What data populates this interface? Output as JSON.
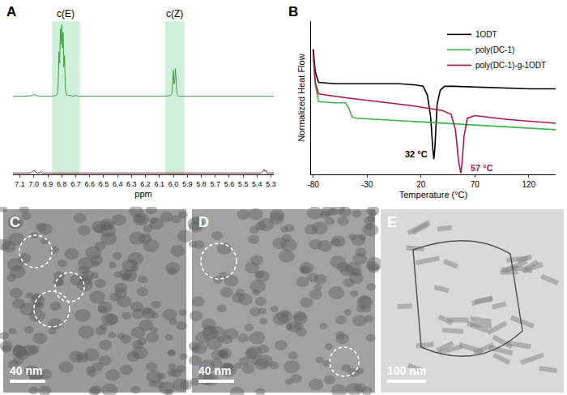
{
  "chart_data": [
    {
      "type": "line",
      "panel_label": "A",
      "x_label": "ppm",
      "xlim": [
        7.15,
        5.28
      ],
      "xticks": [
        {
          "value": 7.1,
          "label": "7.1"
        },
        {
          "value": 7,
          "label": "7.0"
        },
        6.9,
        6.8,
        6.7,
        6.6,
        6.5,
        6.4,
        6.3,
        6.2,
        6.1,
        {
          "value": 6,
          "label": "6.0"
        },
        5.9,
        5.8,
        5.7,
        5.6,
        5.5,
        5.4,
        5.3
      ],
      "ylim": [
        0,
        100
      ],
      "yticks": [],
      "y2lim": [
        0,
        100
      ],
      "y2ticks": [],
      "tick_labels": "x",
      "regions": [
        {
          "x": [
            6.87,
            6.67
          ],
          "label": "c(E)"
        },
        {
          "x": [
            6.06,
            5.92
          ],
          "label": "c(Z)"
        }
      ],
      "series": [
        {
          "color": "#3f9f3f",
          "axis": "y2",
          "x": [
            7.15,
            7.05,
            7.01,
            7.0,
            6.99,
            6.95,
            6.9,
            6.87,
            6.84,
            6.83,
            6.825,
            6.82,
            6.815,
            6.81,
            6.805,
            6.8,
            6.795,
            6.79,
            6.785,
            6.78,
            6.775,
            6.77,
            6.76,
            6.74,
            6.72,
            6.7,
            6.68,
            6.6,
            6.4,
            6.2,
            6.06,
            6.02,
            6.01,
            6.005,
            6.0,
            5.995,
            5.99,
            5.985,
            5.98,
            5.975,
            5.97,
            5.96,
            5.93,
            5.8,
            5.6,
            5.4,
            5.28
          ],
          "values": [
            2,
            2,
            3,
            5,
            3,
            2,
            2,
            2,
            3,
            5,
            20,
            60,
            45,
            90,
            70,
            95,
            65,
            85,
            40,
            55,
            15,
            6,
            3,
            3,
            2,
            3,
            2,
            2,
            2,
            2,
            2,
            3,
            6,
            20,
            36,
            18,
            22,
            38,
            14,
            6,
            3,
            2,
            2,
            2,
            2,
            2,
            2
          ]
        },
        {
          "color": "#8b1a2b",
          "axis": "y",
          "x": [
            7.15,
            7.02,
            7.0,
            6.98,
            6.96,
            6.95,
            6.94,
            6.8,
            6.6,
            6.4,
            6.2,
            6.0,
            5.8,
            5.6,
            5.4,
            5.37,
            5.36,
            5.35,
            5.345,
            5.34,
            5.33,
            5.28
          ],
          "values": [
            2,
            2,
            6,
            2,
            2,
            4,
            2,
            2,
            2,
            2,
            2,
            2,
            2,
            2,
            2,
            2,
            4,
            7,
            5,
            6,
            2,
            2
          ]
        }
      ]
    },
    {
      "type": "line",
      "panel_label": "B",
      "x_label": "Temperature (°C)",
      "y_label": "Normalized Heat Flow",
      "xlim": [
        -82,
        145
      ],
      "xticks": [
        -80,
        -30,
        20,
        70,
        120
      ],
      "ylim": [
        0,
        120
      ],
      "yticks": [],
      "tick_labels": "x",
      "legend": "top right",
      "series": [
        {
          "name": "1ODT",
          "color": "#000000",
          "x": [
            -80,
            -78,
            -75,
            -60,
            -30,
            0,
            15,
            22,
            26,
            29,
            31,
            32,
            33,
            35,
            38,
            42,
            50,
            80,
            120,
            145
          ],
          "values": [
            98,
            80,
            72,
            71,
            71,
            71,
            70,
            69,
            62,
            45,
            20,
            12,
            22,
            55,
            66,
            69,
            69,
            68,
            67,
            67
          ]
        },
        {
          "name": "poly(DC-1)",
          "color": "#3cb44b",
          "x": [
            -80,
            -78,
            -75,
            -60,
            -50,
            -47,
            -44,
            -40,
            -20,
            20,
            60,
            100,
            145
          ],
          "values": [
            93,
            70,
            57,
            56,
            56,
            52,
            45,
            44,
            43,
            41,
            39,
            37,
            35
          ]
        },
        {
          "name": "poly(DC-1)-g-1ODT",
          "color": "#b0144f",
          "x": [
            -80,
            -78,
            -75,
            -50,
            -20,
            10,
            40,
            48,
            52,
            55,
            57,
            58,
            60,
            63,
            70,
            100,
            145
          ],
          "values": [
            95,
            72,
            63,
            60,
            57,
            54,
            50,
            47,
            35,
            10,
            1,
            8,
            30,
            44,
            46,
            43,
            40
          ]
        }
      ],
      "annotations": [
        {
          "text": "32 °C",
          "series": 0,
          "side": "left"
        },
        {
          "text": "57 °C",
          "series": 2,
          "side": "right"
        }
      ]
    }
  ],
  "images": [
    {
      "panel_label": "C",
      "scale_bar": "40 nm"
    },
    {
      "panel_label": "D",
      "scale_bar": "40 nm"
    },
    {
      "panel_label": "E",
      "scale_bar": "100 nm"
    }
  ]
}
